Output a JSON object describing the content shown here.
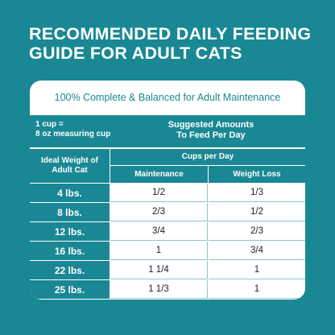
{
  "header": {
    "title_lines": [
      "RECOMMENDED DAILY FEEDING",
      "GUIDE FOR ADULT CATS"
    ]
  },
  "table": {
    "subtitle": "100% Complete & Balanced for Adult Maintenance",
    "note_lines": [
      "1 cup =",
      "8 oz measuring cup"
    ],
    "suggested_lines": [
      "Suggested Amounts",
      "To Feed Per Day"
    ],
    "weight_header_lines": [
      "Ideal Weight of",
      "Adult Cat"
    ],
    "cups_header": "Cups per Day",
    "columns": [
      "Maintenance",
      "Weight Loss"
    ],
    "rows": [
      [
        "4 lbs.",
        "1/2",
        "1/3"
      ],
      [
        "8 lbs.",
        "2/3",
        "1/2"
      ],
      [
        "12 lbs.",
        "3/4",
        "2/3"
      ],
      [
        "16 lbs.",
        "1",
        "3/4"
      ],
      [
        "22 lbs.",
        "1 1/4",
        "1"
      ],
      [
        "25 lbs.",
        "1 1/3",
        "1"
      ]
    ]
  }
}
